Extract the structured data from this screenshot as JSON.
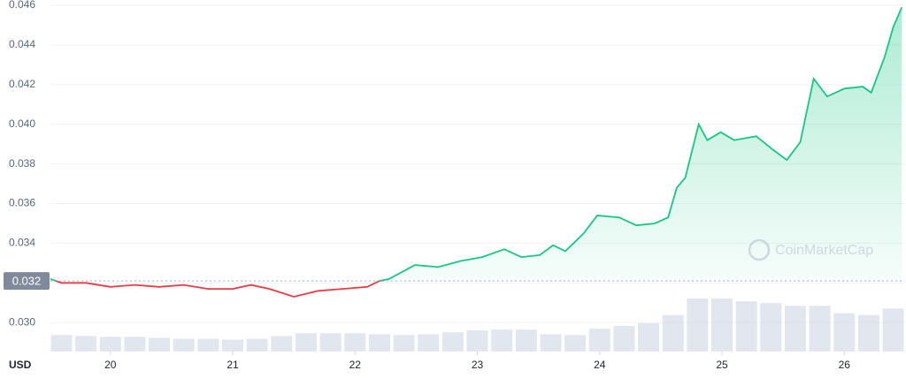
{
  "chart_data": {
    "type": "line",
    "series": [
      {
        "color": "#16c784",
        "down_color": "#ea3943",
        "x": [
          19.51,
          19.6,
          19.8,
          20.0,
          20.2,
          20.4,
          20.6,
          20.8,
          21.0,
          21.15,
          21.3,
          21.5,
          21.7,
          21.9,
          22.1,
          22.2,
          22.28,
          22.49,
          22.68,
          22.86,
          23.04,
          23.22,
          23.36,
          23.51,
          23.62,
          23.72,
          23.87,
          23.98,
          24.16,
          24.3,
          24.45,
          24.56,
          24.63,
          24.7,
          24.81,
          24.88,
          24.99,
          25.1,
          25.28,
          25.42,
          25.53,
          25.64,
          25.75,
          25.86,
          26.0,
          26.15,
          26.22,
          26.33,
          26.4,
          26.47
        ],
        "values": [
          0.0322,
          0.032,
          0.032,
          0.0318,
          0.0319,
          0.0318,
          0.0319,
          0.0317,
          0.0317,
          0.0319,
          0.0317,
          0.0313,
          0.0316,
          0.0317,
          0.0318,
          0.0321,
          0.0322,
          0.0329,
          0.0328,
          0.0331,
          0.0333,
          0.0337,
          0.0333,
          0.0334,
          0.0339,
          0.0336,
          0.0345,
          0.0354,
          0.0353,
          0.0349,
          0.035,
          0.0353,
          0.0368,
          0.0373,
          0.04,
          0.0392,
          0.0396,
          0.0392,
          0.0394,
          0.0387,
          0.0382,
          0.0391,
          0.0423,
          0.0414,
          0.0418,
          0.0419,
          0.0416,
          0.0434,
          0.0449,
          0.0459
        ]
      }
    ],
    "volume": {
      "color": "#cfd6e4",
      "x": [
        19.6,
        19.8,
        20.0,
        20.2,
        20.4,
        20.6,
        20.8,
        21.0,
        21.2,
        21.4,
        21.6,
        21.8,
        22.0,
        22.2,
        22.4,
        22.6,
        22.8,
        23.0,
        23.2,
        23.4,
        23.6,
        23.8,
        24.0,
        24.2,
        24.4,
        24.6,
        24.8,
        25.0,
        25.2,
        25.4,
        25.6,
        25.8,
        26.0,
        26.2,
        26.4
      ],
      "values": [
        18,
        17,
        16,
        16,
        15,
        14,
        14,
        13,
        14,
        17,
        20,
        20,
        20,
        19,
        18,
        19,
        21,
        23,
        24,
        24,
        19,
        18,
        25,
        28,
        31,
        40,
        58,
        58,
        55,
        53,
        50,
        50,
        42,
        40,
        47
      ]
    },
    "baseline": {
      "value": 0.0321,
      "label": "0.032"
    },
    "xlim": [
      19.51,
      26.49
    ],
    "ylim": [
      0.02854,
      0.04609
    ],
    "xticks": [
      20,
      21,
      22,
      23,
      24,
      25,
      26
    ],
    "yticks": [
      {
        "value": 0.03,
        "label": "0.030"
      },
      {
        "value": 0.032,
        "label": "0.032"
      },
      {
        "value": 0.034,
        "label": "0.034"
      },
      {
        "value": 0.036,
        "label": "0.036"
      },
      {
        "value": 0.038,
        "label": "0.038"
      },
      {
        "value": 0.04,
        "label": "0.040"
      },
      {
        "value": 0.042,
        "label": "0.042"
      },
      {
        "value": 0.044,
        "label": "0.044"
      },
      {
        "value": 0.046,
        "label": "0.046"
      }
    ],
    "grid": true,
    "x_unit_label": "USD",
    "watermark": "CoinMarketCap"
  }
}
